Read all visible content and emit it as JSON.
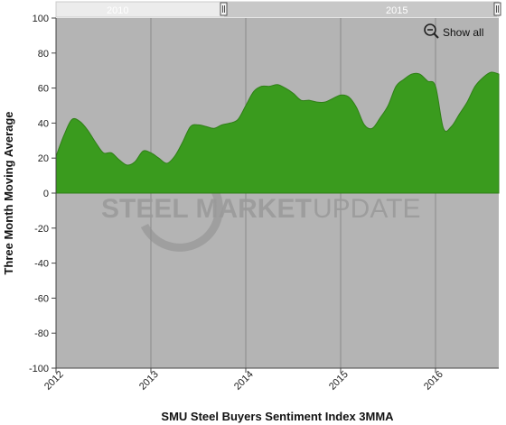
{
  "chart_data": {
    "type": "area",
    "title": "",
    "xlabel": "SMU Steel Buyers Sentiment Index 3MMA",
    "ylabel": "Three Month Moving Average",
    "ylim": [
      -100,
      100
    ],
    "y_ticks": [
      100,
      80,
      60,
      40,
      20,
      0,
      -20,
      -40,
      -60,
      -80,
      -100
    ],
    "x_range": [
      "2012-01",
      "2016-09"
    ],
    "x_tick_labels": [
      "2012",
      "2013",
      "2014",
      "2015",
      "2016"
    ],
    "grid": "vertical lines at year boundaries",
    "watermark": "STEEL MARKET UPDATE",
    "series": [
      {
        "color": "#3a9b1e",
        "x": [
          "2012-01",
          "2012-02",
          "2012-03",
          "2012-04",
          "2012-05",
          "2012-06",
          "2012-07",
          "2012-08",
          "2012-09",
          "2012-10",
          "2012-11",
          "2012-12",
          "2013-01",
          "2013-02",
          "2013-03",
          "2013-04",
          "2013-05",
          "2013-06",
          "2013-07",
          "2013-08",
          "2013-09",
          "2013-10",
          "2013-11",
          "2013-12",
          "2014-01",
          "2014-02",
          "2014-03",
          "2014-04",
          "2014-05",
          "2014-06",
          "2014-07",
          "2014-08",
          "2014-09",
          "2014-10",
          "2014-11",
          "2014-12",
          "2015-01",
          "2015-02",
          "2015-03",
          "2015-04",
          "2015-05",
          "2015-06",
          "2015-07",
          "2015-08",
          "2015-09",
          "2015-10",
          "2015-11",
          "2015-12",
          "2016-01",
          "2016-02",
          "2016-03",
          "2016-04",
          "2016-05",
          "2016-06",
          "2016-07",
          "2016-08",
          "2016-09"
        ],
        "values": [
          21,
          33,
          42,
          41,
          36,
          29,
          23,
          23,
          19,
          16,
          18,
          24,
          23,
          20,
          17,
          21,
          29,
          38,
          39,
          38,
          37,
          39,
          40,
          42,
          50,
          58,
          61,
          61,
          62,
          60,
          57,
          53,
          53,
          52,
          52,
          54,
          56,
          55,
          49,
          39,
          37,
          43,
          50,
          61,
          65,
          68,
          68,
          64,
          61,
          37,
          38,
          45,
          52,
          61,
          66,
          69,
          68
        ]
      }
    ]
  },
  "navigator": {
    "labels": [
      "2010",
      "2015"
    ]
  },
  "zoom_button": {
    "label": "Show all",
    "icon": "zoom-out-magnifier-icon"
  }
}
